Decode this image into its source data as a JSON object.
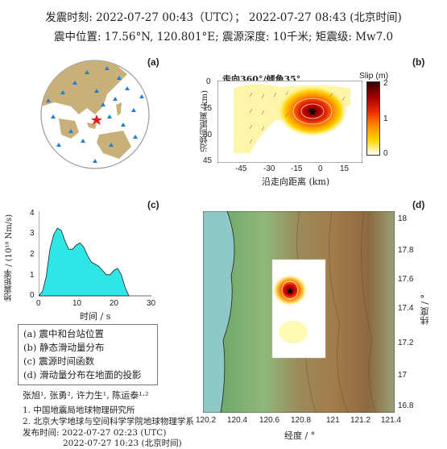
{
  "header": {
    "line1": "发震时刻: 2022-07-27 00:43（UTC）；  2022-07-27  08:43 (北京时间)",
    "line2": "震中位置: 17.56°N,  120.801°E;   震源深度: 10千米; 矩震级: Mw7.0"
  },
  "panels": {
    "a": {
      "label": "(a)"
    },
    "b": {
      "label": "(b)",
      "title": "走向360°/倾角35°",
      "ylabel": "沿倾向距离 (km)",
      "xlabel": "沿走向距离 (km)",
      "xticks": [
        "-45",
        "-30",
        "-15",
        "0",
        "15"
      ],
      "yticks": [
        "0",
        "15",
        "30",
        "45"
      ],
      "colorbar_title": "Slip (m)",
      "colorbar_ticks": [
        "2",
        "1",
        "0"
      ]
    },
    "c": {
      "label": "(c)",
      "ylabel": "地震矩率 / (10¹⁸ Nm/s)",
      "xlabel": "时间 / s",
      "xticks": [
        "0",
        "10",
        "20",
        "30"
      ],
      "yticks": [
        "0",
        "1",
        "2",
        "3",
        "4"
      ]
    },
    "d": {
      "label": "(d)",
      "xlabel": "经度 / °",
      "ylabel": "纬度 / °",
      "xticks": [
        "120.2",
        "120.4",
        "120.6",
        "120.8",
        "121",
        "121.2",
        "121.4"
      ],
      "yticks": [
        "18",
        "17.8",
        "17.6",
        "17.4",
        "17.2",
        "17",
        "16.8"
      ]
    }
  },
  "chart_data": {
    "type": "area",
    "x": [
      0,
      1,
      2,
      3,
      4,
      5,
      6,
      7,
      8,
      9,
      10,
      11,
      12,
      13,
      14,
      15,
      16,
      17,
      18,
      19,
      20,
      21,
      22,
      23,
      24
    ],
    "values": [
      0,
      0.2,
      0.9,
      2.2,
      2.9,
      3.2,
      3.1,
      2.6,
      2.2,
      2.2,
      2.4,
      2.5,
      2.3,
      1.9,
      1.6,
      1.5,
      1.4,
      1.2,
      1.0,
      1.0,
      1.2,
      1.3,
      1.0,
      0.4,
      0
    ],
    "xlabel": "时间 / s",
    "ylabel": "地震矩率 / (10¹⁸ Nm/s)",
    "xlim": [
      0,
      30
    ],
    "ylim": [
      0,
      4
    ],
    "color": "#2ee6e6"
  },
  "legend_items": [
    "(a) 震中和台站位置",
    "(b) 静态滑动量分布",
    "(c) 震源时间函数",
    "(d) 滑动量分布在地面的投影"
  ],
  "footer": {
    "authors": "张旭¹, 张勇², 许力生¹, 陈运泰¹·²",
    "aff1": "1. 中国地震局地球物理研究所",
    "aff2": "2. 北京大学地球与空间科学学院地球物理学系",
    "pub1": "发布时间:   2022-07-27   02:23 (UTC)",
    "pub2": "2022-07-27   10:23 (北京时间)"
  },
  "colors": {
    "land": "#c7b07a",
    "ocean": "#ffffff",
    "station": "#1f7fd6",
    "epicenter": "#e02020",
    "sti": "#2ee6e6"
  }
}
